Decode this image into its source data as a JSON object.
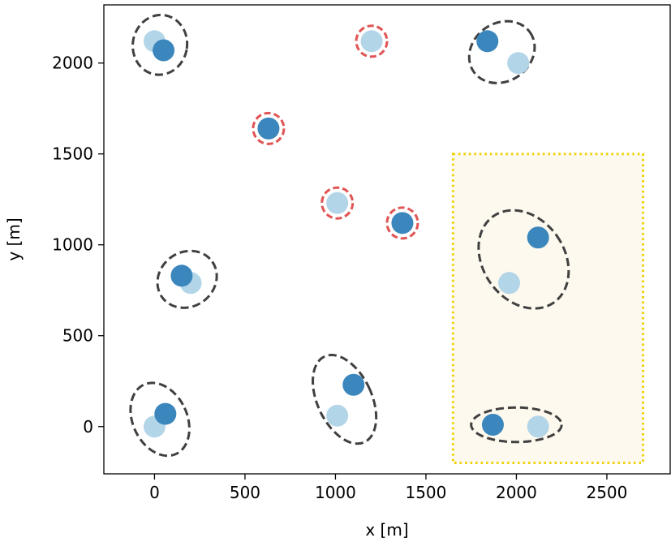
{
  "chart_data": {
    "type": "scatter",
    "title": "",
    "xlabel": "x [m]",
    "ylabel": "y [m]",
    "xlim": [
      -280,
      2850
    ],
    "ylim": [
      -260,
      2320
    ],
    "xticks": [
      0,
      500,
      1000,
      1500,
      2000,
      2500
    ],
    "yticks": [
      0,
      500,
      1000,
      1500,
      2000
    ],
    "grid": false,
    "colors": {
      "dark_point": "#3b87bd",
      "light_point": "#b3d5e8",
      "ellipse_group": "#404040",
      "ellipse_single": "#e05555",
      "region_fill": "#fdf9ee",
      "region_border": "#f0d000"
    },
    "highlight_region": {
      "x": [
        1650,
        2700
      ],
      "y": [
        -200,
        1500
      ]
    },
    "pairs": [
      {
        "dark": [
          50,
          2070
        ],
        "light": [
          0,
          2120
        ],
        "ellipse": {
          "cx": 30,
          "cy": 2100,
          "w": 300,
          "h": 330,
          "angle": 10
        }
      },
      {
        "dark": [
          1840,
          2120
        ],
        "light": [
          2010,
          2000
        ],
        "ellipse": {
          "cx": 1920,
          "cy": 2060,
          "w": 380,
          "h": 320,
          "angle": -35
        }
      },
      {
        "dark": [
          150,
          830
        ],
        "light": [
          200,
          790
        ],
        "ellipse": {
          "cx": 180,
          "cy": 810,
          "w": 340,
          "h": 300,
          "angle": -35
        }
      },
      {
        "dark": [
          2120,
          1040
        ],
        "light": [
          1960,
          790
        ],
        "ellipse": {
          "cx": 2040,
          "cy": 920,
          "w": 450,
          "h": 580,
          "angle": -35
        }
      },
      {
        "dark": [
          1100,
          230
        ],
        "light": [
          1010,
          60
        ],
        "ellipse": {
          "cx": 1050,
          "cy": 150,
          "w": 300,
          "h": 520,
          "angle": -25
        }
      },
      {
        "dark": [
          60,
          70
        ],
        "light": [
          0,
          0
        ],
        "ellipse": {
          "cx": 30,
          "cy": 40,
          "w": 300,
          "h": 420,
          "angle": -25
        }
      },
      {
        "dark": [
          1870,
          10
        ],
        "light": [
          2120,
          0
        ],
        "ellipse": {
          "cx": 2000,
          "cy": 10,
          "w": 500,
          "h": 190,
          "angle": 0
        }
      }
    ],
    "singles": [
      {
        "shade": "light",
        "xy": [
          1200,
          2120
        ]
      },
      {
        "shade": "dark",
        "xy": [
          630,
          1640
        ]
      },
      {
        "shade": "light",
        "xy": [
          1010,
          1230
        ]
      },
      {
        "shade": "dark",
        "xy": [
          1370,
          1120
        ]
      }
    ]
  }
}
